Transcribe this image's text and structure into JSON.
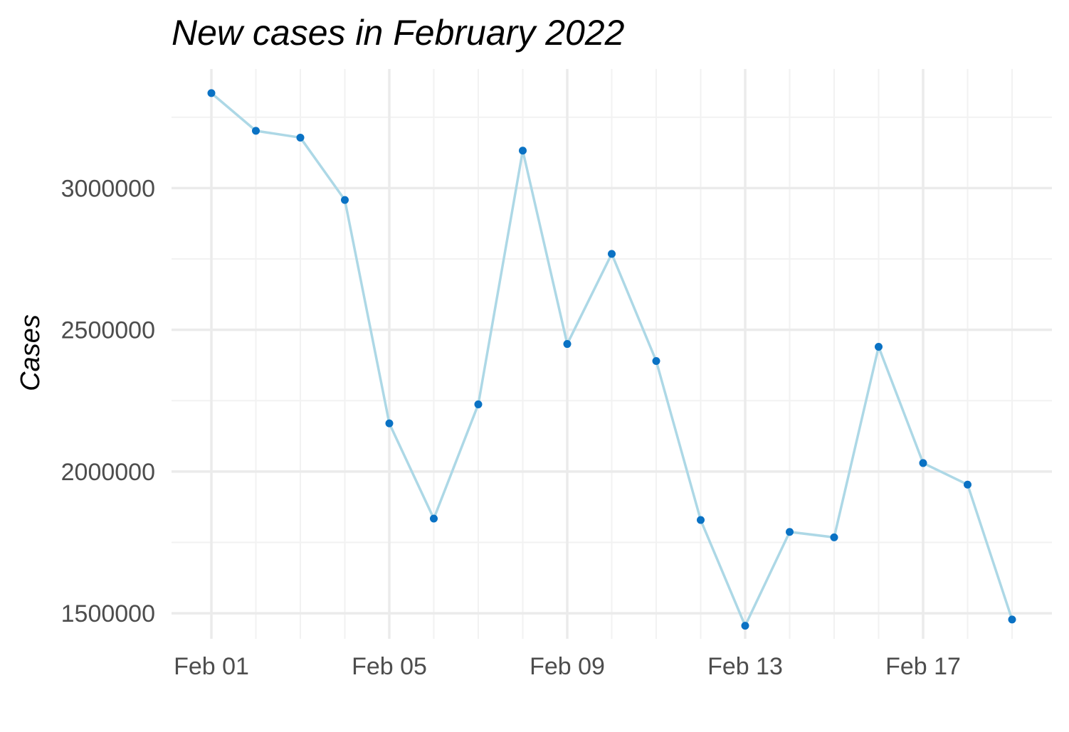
{
  "chart_data": {
    "type": "line",
    "title": "New cases in February 2022",
    "xlabel": "",
    "ylabel": "Cases",
    "x": [
      "Feb 01",
      "Feb 02",
      "Feb 03",
      "Feb 04",
      "Feb 05",
      "Feb 06",
      "Feb 07",
      "Feb 08",
      "Feb 09",
      "Feb 10",
      "Feb 11",
      "Feb 12",
      "Feb 13",
      "Feb 14",
      "Feb 15",
      "Feb 16",
      "Feb 17",
      "Feb 18",
      "Feb 19"
    ],
    "series": [
      {
        "values": [
          3335000,
          3202000,
          3178000,
          2958000,
          2170000,
          1834000,
          2237000,
          3132000,
          2450000,
          2768000,
          2390000,
          1829000,
          1456000,
          1787000,
          1768000,
          2440000,
          2030000,
          1954000,
          1478000
        ]
      }
    ],
    "xticks": [
      "Feb 01",
      "Feb 05",
      "Feb 09",
      "Feb 13",
      "Feb 17"
    ],
    "yticks": [
      "1500000",
      "2000000",
      "2500000",
      "3000000"
    ],
    "ylim": [
      1410000,
      3420000
    ],
    "grid": true,
    "legend": "none",
    "colors": {
      "line": "#add8e6",
      "point": "#0a72c4",
      "grid_major": "#ebebeb",
      "grid_minor": "#f2f2f2",
      "tick_text": "#4d4d4d"
    }
  }
}
